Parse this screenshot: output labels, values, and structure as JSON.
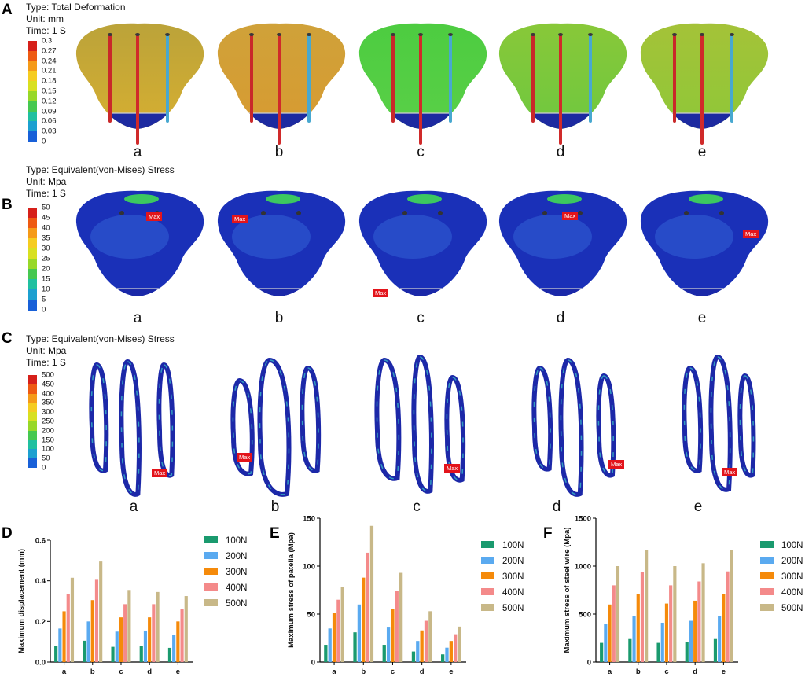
{
  "panels": {
    "A": {
      "letter": "A",
      "type_line": "Type: Total Deformation",
      "unit_line": "Unit: mm",
      "time_line": "Time: 1 S",
      "legend_ticks": [
        "0.3",
        "0.27",
        "0.24",
        "0.21",
        "0.18",
        "0.15",
        "0.12",
        "0.09",
        "0.06",
        "0.03",
        "0"
      ],
      "models": [
        "a",
        "b",
        "c",
        "d",
        "e"
      ]
    },
    "B": {
      "letter": "B",
      "type_line": "Type: Equivalent(von-Mises) Stress",
      "unit_line": "Unit: Mpa",
      "time_line": "Time: 1 S",
      "legend_ticks": [
        "50",
        "45",
        "40",
        "35",
        "30",
        "25",
        "20",
        "15",
        "10",
        "5",
        "0"
      ],
      "models": [
        "a",
        "b",
        "c",
        "d",
        "e"
      ],
      "max_tag": "Max"
    },
    "C": {
      "letter": "C",
      "type_line": "Type: Equivalent(von-Mises) Stress",
      "unit_line": "Unit: Mpa",
      "time_line": "Time: 1 S",
      "legend_ticks": [
        "500",
        "450",
        "400",
        "350",
        "300",
        "250",
        "200",
        "150",
        "100",
        "50",
        "0"
      ],
      "models": [
        "a",
        "b",
        "c",
        "d",
        "e"
      ],
      "max_tag": "Max"
    }
  },
  "colors": {
    "series": [
      "#1a9a6e",
      "#5aaaf0",
      "#f58a0a",
      "#f48a8a",
      "#c8b888"
    ],
    "scale": [
      "#d6201a",
      "#ee5a12",
      "#f59a18",
      "#f5cc20",
      "#d8e020",
      "#98d828",
      "#46c850",
      "#20c0a0",
      "#1ca0d0",
      "#1860d8",
      "#1a22b8"
    ]
  },
  "chart_data": [
    {
      "type": "bar",
      "letter": "D",
      "ylabel": "Maximum displacement (mm)",
      "ylim": [
        0,
        0.6
      ],
      "yticks": [
        "0.0",
        "0.2",
        "0.4",
        "0.6"
      ],
      "categories": [
        "a",
        "b",
        "c",
        "d",
        "e"
      ],
      "series": [
        {
          "name": "100N",
          "values": [
            0.08,
            0.105,
            0.075,
            0.078,
            0.07
          ]
        },
        {
          "name": "200N",
          "values": [
            0.165,
            0.2,
            0.15,
            0.155,
            0.135
          ]
        },
        {
          "name": "300N",
          "values": [
            0.25,
            0.305,
            0.22,
            0.22,
            0.2
          ]
        },
        {
          "name": "400N",
          "values": [
            0.335,
            0.405,
            0.285,
            0.285,
            0.26
          ]
        },
        {
          "name": "500N",
          "values": [
            0.415,
            0.495,
            0.355,
            0.345,
            0.325
          ]
        }
      ],
      "legend": "right"
    },
    {
      "type": "bar",
      "letter": "E",
      "ylabel": "Maximum stress of patella (Mpa)",
      "ylim": [
        0,
        150
      ],
      "yticks": [
        "0",
        "50",
        "100",
        "150"
      ],
      "categories": [
        "a",
        "b",
        "c",
        "d",
        "e"
      ],
      "series": [
        {
          "name": "100N",
          "values": [
            18,
            31,
            18,
            11,
            8
          ]
        },
        {
          "name": "200N",
          "values": [
            35,
            60,
            36,
            22,
            15
          ]
        },
        {
          "name": "300N",
          "values": [
            51,
            88,
            55,
            33,
            22
          ]
        },
        {
          "name": "400N",
          "values": [
            65,
            114,
            74,
            43,
            29
          ]
        },
        {
          "name": "500N",
          "values": [
            78,
            142,
            93,
            53,
            37
          ]
        }
      ],
      "legend": "right"
    },
    {
      "type": "bar",
      "letter": "F",
      "ylabel": "Maximum stress of steel wire (Mpa)",
      "ylim": [
        0,
        1500
      ],
      "yticks": [
        "0",
        "500",
        "1000",
        "1500"
      ],
      "categories": [
        "a",
        "b",
        "c",
        "d",
        "e"
      ],
      "series": [
        {
          "name": "100N",
          "values": [
            200,
            240,
            200,
            210,
            240
          ]
        },
        {
          "name": "200N",
          "values": [
            400,
            480,
            410,
            430,
            480
          ]
        },
        {
          "name": "300N",
          "values": [
            600,
            710,
            610,
            640,
            710
          ]
        },
        {
          "name": "400N",
          "values": [
            800,
            940,
            800,
            840,
            945
          ]
        },
        {
          "name": "500N",
          "values": [
            1000,
            1170,
            1000,
            1030,
            1170
          ]
        }
      ],
      "legend": "right"
    }
  ]
}
